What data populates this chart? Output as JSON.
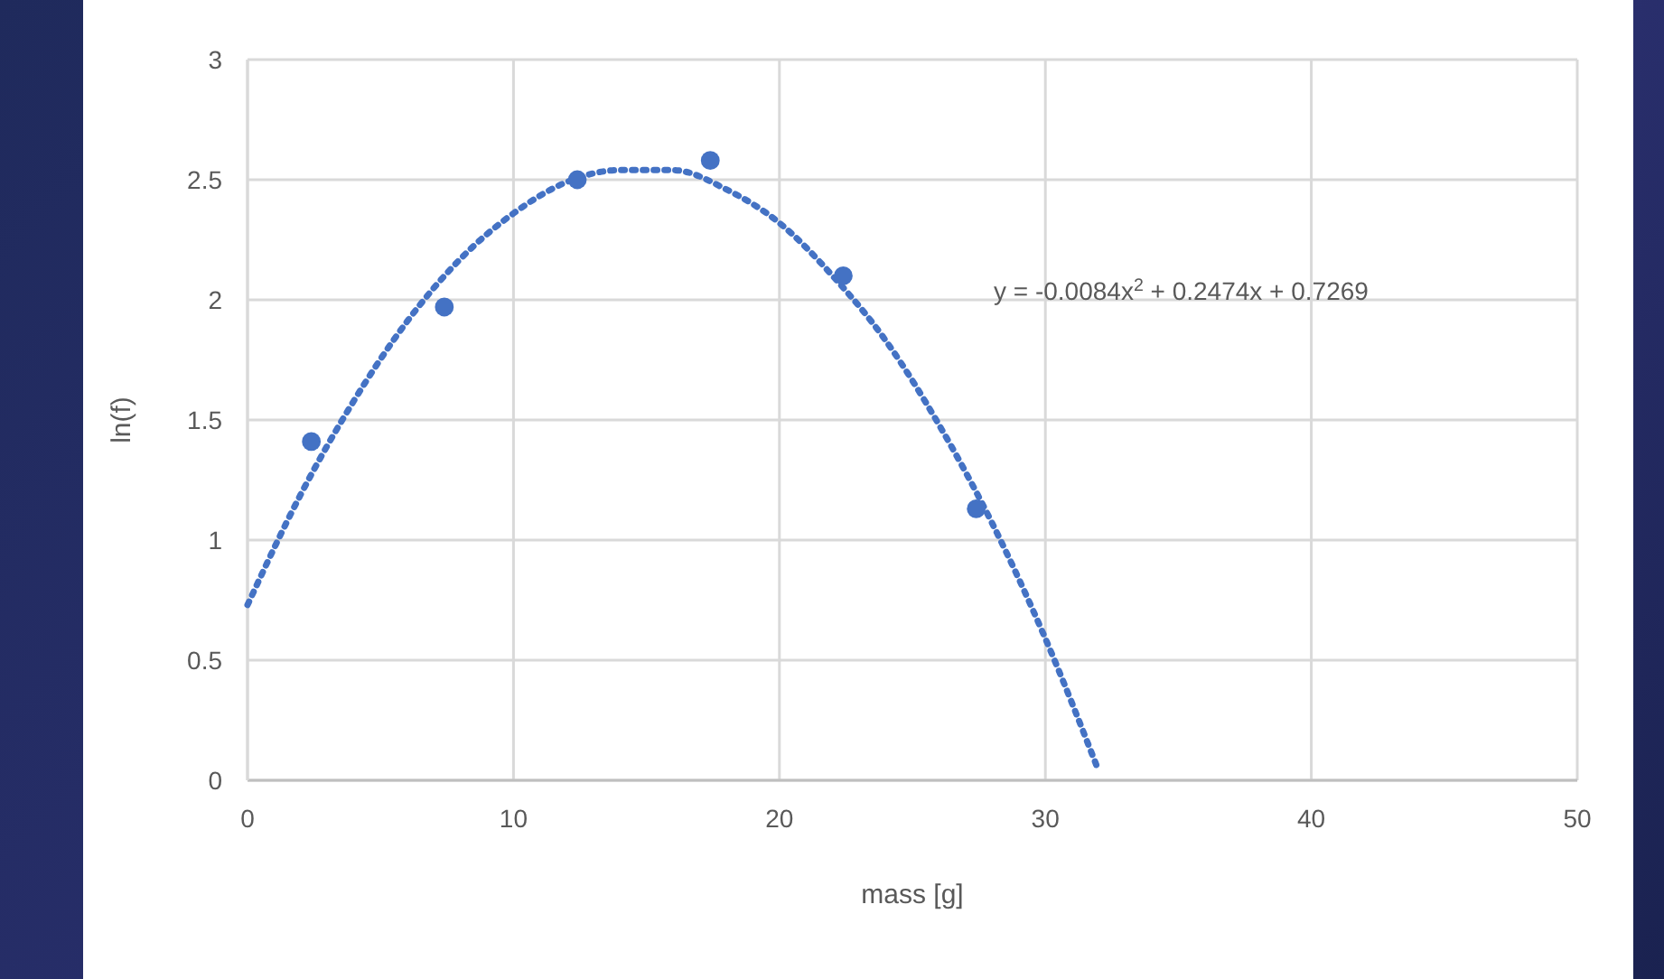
{
  "chart_data": {
    "type": "scatter",
    "xlabel": "mass [g]",
    "ylabel": "ln(f)",
    "xlim": [
      0,
      50
    ],
    "xticks": [
      0,
      10,
      20,
      30,
      40,
      50
    ],
    "ylim": [
      0,
      3
    ],
    "yticks": [
      0,
      0.5,
      1,
      1.5,
      2,
      2.5,
      3
    ],
    "grid": true,
    "marker": "circle",
    "annotations": [
      "y = -0.0084x$^{2}$ + 0.2474x + 0.7269"
    ],
    "series": [
      {
        "color": "#4472c4",
        "x": [
          2.4,
          7.4,
          12.4,
          17.4,
          22.4,
          27.4
        ],
        "values": [
          1.41,
          1.97,
          2.5,
          2.58,
          2.1,
          1.13
        ]
      },
      {
        "type": "line",
        "color": "#4472c4",
        "line_style": "dotted",
        "marker": "none",
        "x": [
          0,
          2,
          4,
          6,
          8,
          10,
          12,
          14,
          16,
          18,
          20,
          22,
          24,
          26,
          28,
          30,
          32
        ],
        "values": [
          0.73,
          1.19,
          1.58,
          1.91,
          2.17,
          2.36,
          2.49,
          2.54,
          2.54,
          2.46,
          2.32,
          2.1,
          1.83,
          1.48,
          1.07,
          0.59,
          0.04
        ]
      }
    ]
  }
}
